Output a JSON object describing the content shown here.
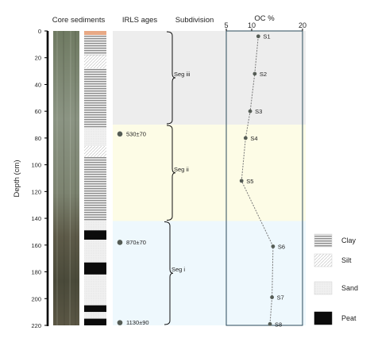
{
  "headers": {
    "core": "Core sediments",
    "ages": "IRLS ages",
    "subdivision": "Subdivision",
    "oc": "OC %"
  },
  "depth_axis": {
    "label": "Depth (cm)",
    "min": 0,
    "max": 220,
    "ticks": [
      0,
      20,
      40,
      60,
      80,
      100,
      120,
      140,
      160,
      180,
      200,
      220
    ]
  },
  "oc_axis": {
    "min": 5,
    "max": 20,
    "ticks": [
      5,
      10,
      20
    ]
  },
  "zones": [
    {
      "name": "Seg iii",
      "top": 0,
      "bottom": 70,
      "color": "#ededed"
    },
    {
      "name": "Seg ii",
      "top": 70,
      "bottom": 142,
      "color": "#fdfce6"
    },
    {
      "name": "Seg i",
      "top": 142,
      "bottom": 220,
      "color": "#eef8fd"
    }
  ],
  "ages": [
    {
      "label": "530±70",
      "depth": 77
    },
    {
      "label": "870±70",
      "depth": 158
    },
    {
      "label": "1130±90",
      "depth": 218
    }
  ],
  "lithology": [
    {
      "top": 0,
      "bottom": 3,
      "type": "orange"
    },
    {
      "top": 3,
      "bottom": 18,
      "type": "clay"
    },
    {
      "top": 18,
      "bottom": 28,
      "type": "silt"
    },
    {
      "top": 28,
      "bottom": 72,
      "type": "clay"
    },
    {
      "top": 72,
      "bottom": 86,
      "type": "sand"
    },
    {
      "top": 86,
      "bottom": 94,
      "type": "silt"
    },
    {
      "top": 94,
      "bottom": 142,
      "type": "clay"
    },
    {
      "top": 142,
      "bottom": 149,
      "type": "sand"
    },
    {
      "top": 149,
      "bottom": 156,
      "type": "peat"
    },
    {
      "top": 156,
      "bottom": 173,
      "type": "sand"
    },
    {
      "top": 173,
      "bottom": 182,
      "type": "peat"
    },
    {
      "top": 182,
      "bottom": 205,
      "type": "sand"
    },
    {
      "top": 205,
      "bottom": 210,
      "type": "peat"
    },
    {
      "top": 210,
      "bottom": 215,
      "type": "sand"
    },
    {
      "top": 215,
      "bottom": 220,
      "type": "peat"
    }
  ],
  "legend": [
    {
      "type": "clay",
      "label": "Clay"
    },
    {
      "type": "silt",
      "label": "Silt"
    },
    {
      "type": "sand",
      "label": "Sand"
    },
    {
      "type": "peat",
      "label": "Peat"
    }
  ],
  "chart_data": {
    "type": "line",
    "xlabel": "OC %",
    "ylabel": "Depth (cm)",
    "xlim": [
      5,
      20
    ],
    "ylim": [
      0,
      220
    ],
    "series": [
      {
        "points": [
          {
            "name": "S1",
            "oc": 11.3,
            "depth": 4
          },
          {
            "name": "S2",
            "oc": 10.6,
            "depth": 32
          },
          {
            "name": "S3",
            "oc": 9.7,
            "depth": 60
          },
          {
            "name": "S4",
            "oc": 8.8,
            "depth": 80
          },
          {
            "name": "S5",
            "oc": 8.0,
            "depth": 112
          },
          {
            "name": "S6",
            "oc": 14.2,
            "depth": 161
          },
          {
            "name": "S7",
            "oc": 14.0,
            "depth": 199
          },
          {
            "name": "S8",
            "oc": 13.6,
            "depth": 219
          }
        ]
      }
    ]
  }
}
